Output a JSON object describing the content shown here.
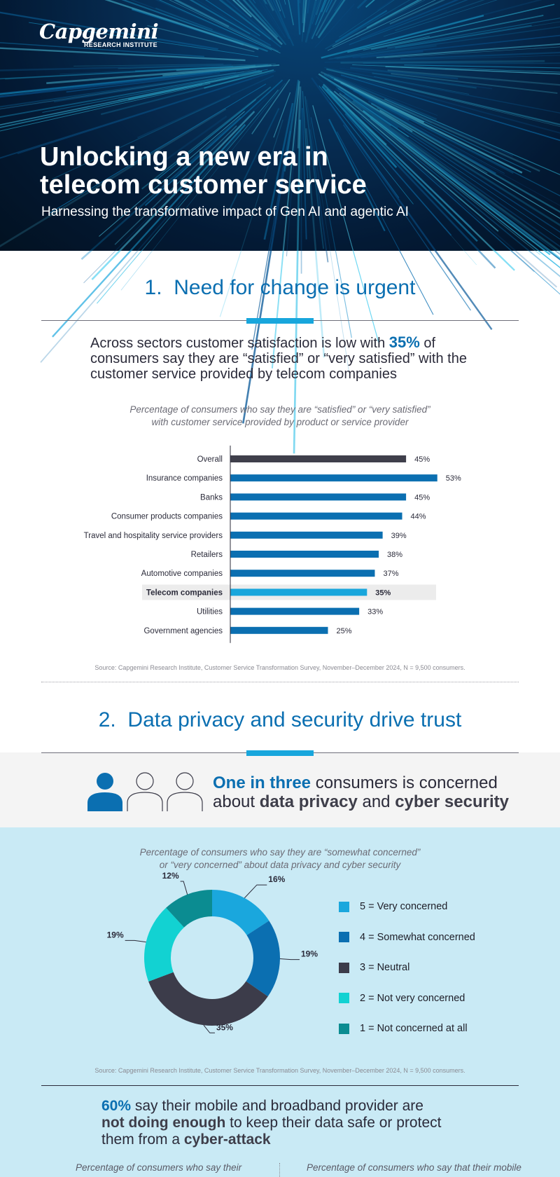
{
  "hero": {
    "brand": "Capgemini",
    "brand_sub": "RESEARCH INSTITUTE",
    "title_line1": "Unlocking a new era in",
    "title_line2": "telecom customer service",
    "subtitle": "Harnessing the transformative impact of Gen AI and agentic AI"
  },
  "section1": {
    "number": "1.",
    "title": "Need for change is urgent",
    "lead_pre": "Across sectors customer satisfaction is low with ",
    "lead_highlight": "35%",
    "lead_post": " of consumers say they are “satisfied” or “very satisfied” with the customer service provided by telecom companies",
    "caption_line1": "Percentage of consumers who say they are “satisfied” or “very satisfied”",
    "caption_line2": "with customer service provided by product or service provider",
    "source": "Source: Capgemini Research Institute, Customer Service Transformation Survey, November–December 2024, N = 9,500 consumers."
  },
  "chart_data": [
    {
      "type": "bar",
      "orientation": "horizontal",
      "categories": [
        "Overall",
        "Insurance companies",
        "Banks",
        "Consumer products companies",
        "Travel and hospitality service providers",
        "Retailers",
        "Automotive companies",
        "Telecom companies",
        "Utilities",
        "Government agencies"
      ],
      "values": [
        45,
        53,
        45,
        44,
        39,
        38,
        37,
        35,
        33,
        25
      ],
      "value_labels": [
        "45%",
        "53%",
        "45%",
        "44%",
        "39%",
        "38%",
        "37%",
        "35%",
        "33%",
        "25%"
      ],
      "highlight": "Telecom companies",
      "colors": {
        "overall": "#3f3f4b",
        "default": "#0b6fb1",
        "highlight": "#18a6dc",
        "highlight_bg": "#ececec"
      },
      "xlim": [
        0,
        60
      ]
    },
    {
      "type": "pie",
      "donut": true,
      "categories": [
        "5 = Very concerned",
        "4 = Somewhat concerned",
        "3 = Neutral",
        "2 = Not very concerned",
        "1 = Not concerned at all"
      ],
      "values": [
        16,
        19,
        35,
        19,
        12
      ],
      "value_labels": [
        "16%",
        "19%",
        "35%",
        "19%",
        "12%"
      ],
      "colors": [
        "#1aa7dd",
        "#0b6fb1",
        "#3c3c4a",
        "#12d2d2",
        "#0b8c91"
      ],
      "legend_position": "right"
    }
  ],
  "section2": {
    "number": "2.",
    "title": "Data privacy and security drive trust",
    "one_in_three_bold": "One in three",
    "one_in_three_rest1": " consumers is concerned",
    "about": "about ",
    "data_privacy": "data privacy",
    "and": " and ",
    "cyber_security": "cyber security",
    "caption_line1": "Percentage of consumers who say they are “somewhat concerned”",
    "caption_line2": "or “very concerned” about data privacy and cyber security",
    "source": "Source: Capgemini Research Institute, Customer Service Transformation Survey, November–December 2024, N = 9,500 consumers.",
    "stat_pct": "60%",
    "stat_line1_rest": " say their mobile and broadband provider are",
    "stat_bold2": "not doing enough",
    "stat_line2_rest": " to keep their data safe or protect",
    "stat_line3_pre": "them from a ",
    "stat_bold3": "cyber-attack",
    "left_caption": "Percentage of consumers who say their",
    "right_caption": "Percentage of consumers who say that their mobile"
  }
}
